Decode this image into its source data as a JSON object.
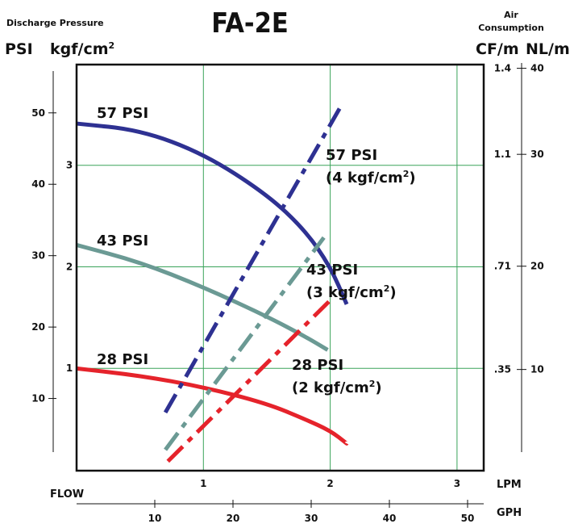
{
  "chart_data": {
    "type": "line",
    "title": "FA-2E",
    "labels": {
      "left_title": "Discharge Pressure",
      "psi_unit": "PSI",
      "kgf_unit": "kgf/cm",
      "kgf_sup": "2",
      "air_title_1": "Air",
      "air_title_2": "Consumption",
      "cfm_unit": "CF/m",
      "nlm_unit": "NL/m",
      "flow": "FLOW",
      "lpm": "LPM",
      "gph": "GPH"
    },
    "axes": {
      "psi": {
        "range": [
          0,
          56
        ],
        "ticks": [
          "10",
          "20",
          "30",
          "40",
          "50"
        ]
      },
      "kgf": {
        "ticks": [
          "1",
          "2",
          "3"
        ]
      },
      "cfm": {
        "ticks": [
          "1.4",
          "1.1",
          ".71",
          ".35"
        ]
      },
      "nlm": {
        "ticks": [
          "40",
          "30",
          "20",
          "10"
        ]
      },
      "lpm": {
        "range": [
          0,
          3.2
        ],
        "ticks": [
          "1",
          "2",
          "3"
        ]
      },
      "gph": {
        "range": [
          0,
          52
        ],
        "ticks": [
          "10",
          "20",
          "30",
          "40",
          "50"
        ]
      }
    },
    "pressure_curves": [
      {
        "name": "57 PSI",
        "color": "#2e3192",
        "x_lpm": [
          0,
          0.5,
          1.0,
          1.5,
          1.8,
          2.0,
          2.13
        ],
        "y_psi": [
          48.5,
          47.6,
          44.3,
          38.6,
          33.6,
          28.5,
          23.2
        ]
      },
      {
        "name": "43 PSI",
        "color": "#6b9a94",
        "x_lpm": [
          0,
          0.5,
          1.0,
          1.5,
          1.8,
          1.98
        ],
        "y_psi": [
          31.5,
          29.1,
          25.6,
          21.5,
          18.7,
          16.8
        ]
      },
      {
        "name": "28 PSI",
        "color": "#e5232b",
        "x_lpm": [
          0,
          0.5,
          1.0,
          1.5,
          1.8,
          2.0,
          2.13
        ],
        "y_psi": [
          14.2,
          13.2,
          11.6,
          9.3,
          7.1,
          5.5,
          3.7
        ]
      }
    ],
    "air_lines": [
      {
        "name": "57 PSI",
        "name2": "(4 kgf/cm",
        "sup": "2",
        "tail": ")",
        "color": "#2e3192",
        "x_lpm": [
          0.7,
          2.1
        ],
        "y_cfm": [
          0.2,
          1.28
        ]
      },
      {
        "name": "43 PSI",
        "name2": "(3 kgf/cm",
        "sup": "2",
        "tail": ")",
        "color": "#6b9a94",
        "x_lpm": [
          0.7,
          1.95
        ],
        "y_cfm": [
          0.07,
          0.81
        ]
      },
      {
        "name": "28 PSI",
        "name2": "(2 kgf/cm",
        "sup": "2",
        "tail": ")",
        "color": "#e5232b",
        "x_lpm": [
          0.72,
          2.02
        ],
        "y_cfm": [
          0.03,
          0.6
        ]
      }
    ],
    "grid": true
  }
}
